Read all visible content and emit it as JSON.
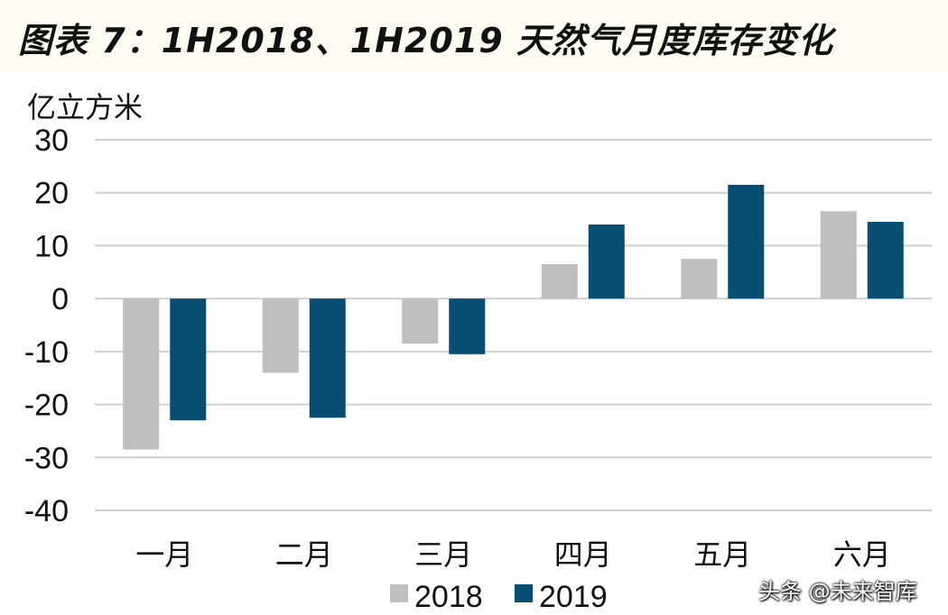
{
  "figure_title": "图表 7：1H2018、1H2019 天然气月度库存变化",
  "watermark": "头条 @未来智库",
  "chart_data": {
    "type": "bar",
    "title": "",
    "ylabel": "亿立方米",
    "xlabel": "",
    "categories": [
      "一月",
      "二月",
      "三月",
      "四月",
      "五月",
      "六月"
    ],
    "series": [
      {
        "name": "2018",
        "color": "#bfbfbf",
        "values": [
          -28.5,
          -14,
          -8.5,
          6.5,
          7.5,
          16.5
        ]
      },
      {
        "name": "2019",
        "color": "#064f73",
        "values": [
          -23,
          -22.5,
          -10.5,
          14,
          21.5,
          14.5
        ]
      }
    ],
    "ylim": [
      -40,
      30
    ],
    "yticks": [
      30,
      20,
      10,
      0,
      -10,
      -20,
      -30,
      -40
    ],
    "grid": true,
    "legend_position": "bottom-center"
  }
}
